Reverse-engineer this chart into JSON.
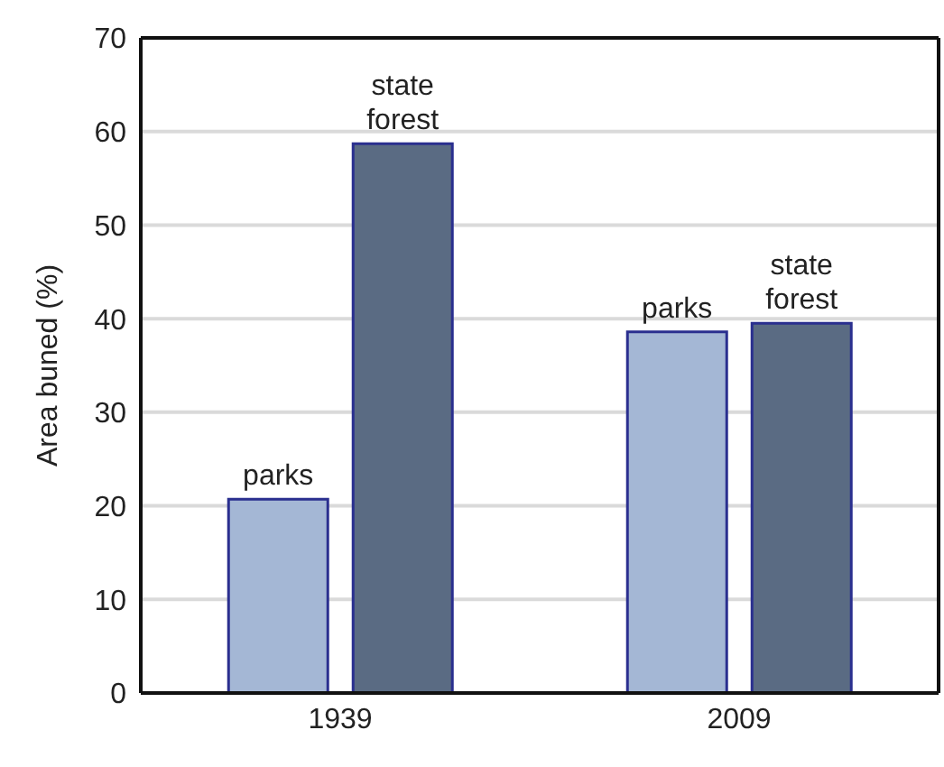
{
  "chart_data": {
    "type": "bar",
    "ylabel": "Area buned (%)",
    "categories": [
      "1939",
      "2009"
    ],
    "series": [
      {
        "name": "parks",
        "color": "#a4b7d5",
        "values": [
          20.7,
          38.6
        ]
      },
      {
        "name": "state forest",
        "color": "#5a6b83",
        "values": [
          58.7,
          39.5
        ]
      }
    ],
    "ylim": [
      0,
      70
    ],
    "yticks": [
      0,
      10,
      20,
      30,
      40,
      50,
      60,
      70
    ],
    "grid": "y"
  }
}
